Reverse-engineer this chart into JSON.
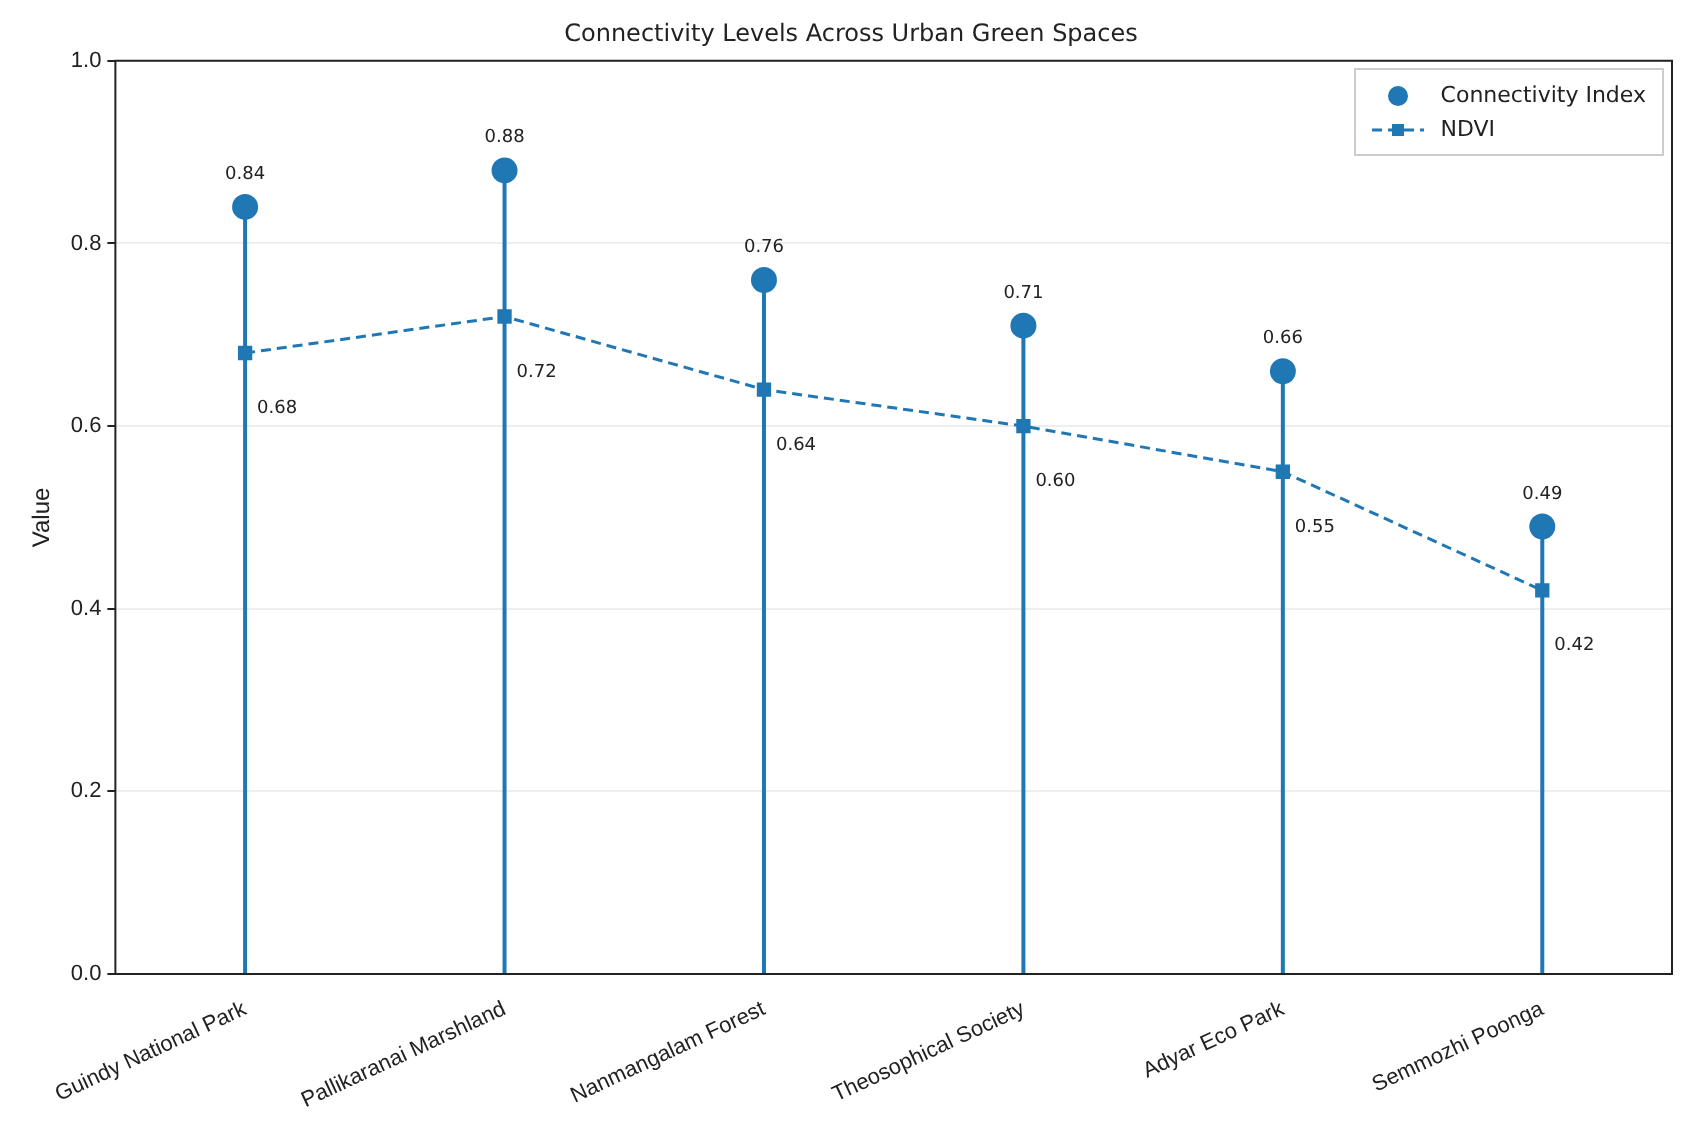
{
  "chart_data": {
    "type": "lollipop",
    "title": "Connectivity Levels Across Urban Green Spaces",
    "ylabel": "Value",
    "categories": [
      "Guindy National Park",
      "Pallikaranai Marshland",
      "Nanmangalam Forest",
      "Theosophical Society",
      "Adyar Eco Park",
      "Semmozhi Poonga"
    ],
    "series": [
      {
        "name": "Connectivity Index",
        "color": "#1f77b4",
        "marker": "circle",
        "values": [
          0.84,
          0.88,
          0.76,
          0.71,
          0.66,
          0.49
        ],
        "value_labels": [
          "0.84",
          "0.88",
          "0.76",
          "0.71",
          "0.66",
          "0.49"
        ]
      },
      {
        "name": "NDVI",
        "type": "line",
        "color": "#1f77b4",
        "marker": "square",
        "line_style": "dashed",
        "values": [
          0.68,
          0.72,
          0.64,
          0.6,
          0.55,
          0.42
        ],
        "value_labels": [
          "0.68",
          "0.72",
          "0.64",
          "0.60",
          "0.55",
          "0.42"
        ]
      }
    ],
    "ylim": [
      0,
      1
    ],
    "yticks": [
      {
        "value": 0,
        "label": "0.0"
      },
      {
        "value": 0.2,
        "label": "0.2"
      },
      {
        "value": 0.4,
        "label": "0.4"
      },
      {
        "value": 0.6,
        "label": "0.6"
      },
      {
        "value": 0.8,
        "label": "0.8"
      },
      {
        "value": 1,
        "label": "1.0"
      }
    ],
    "grid": "y",
    "legend": "top right"
  }
}
